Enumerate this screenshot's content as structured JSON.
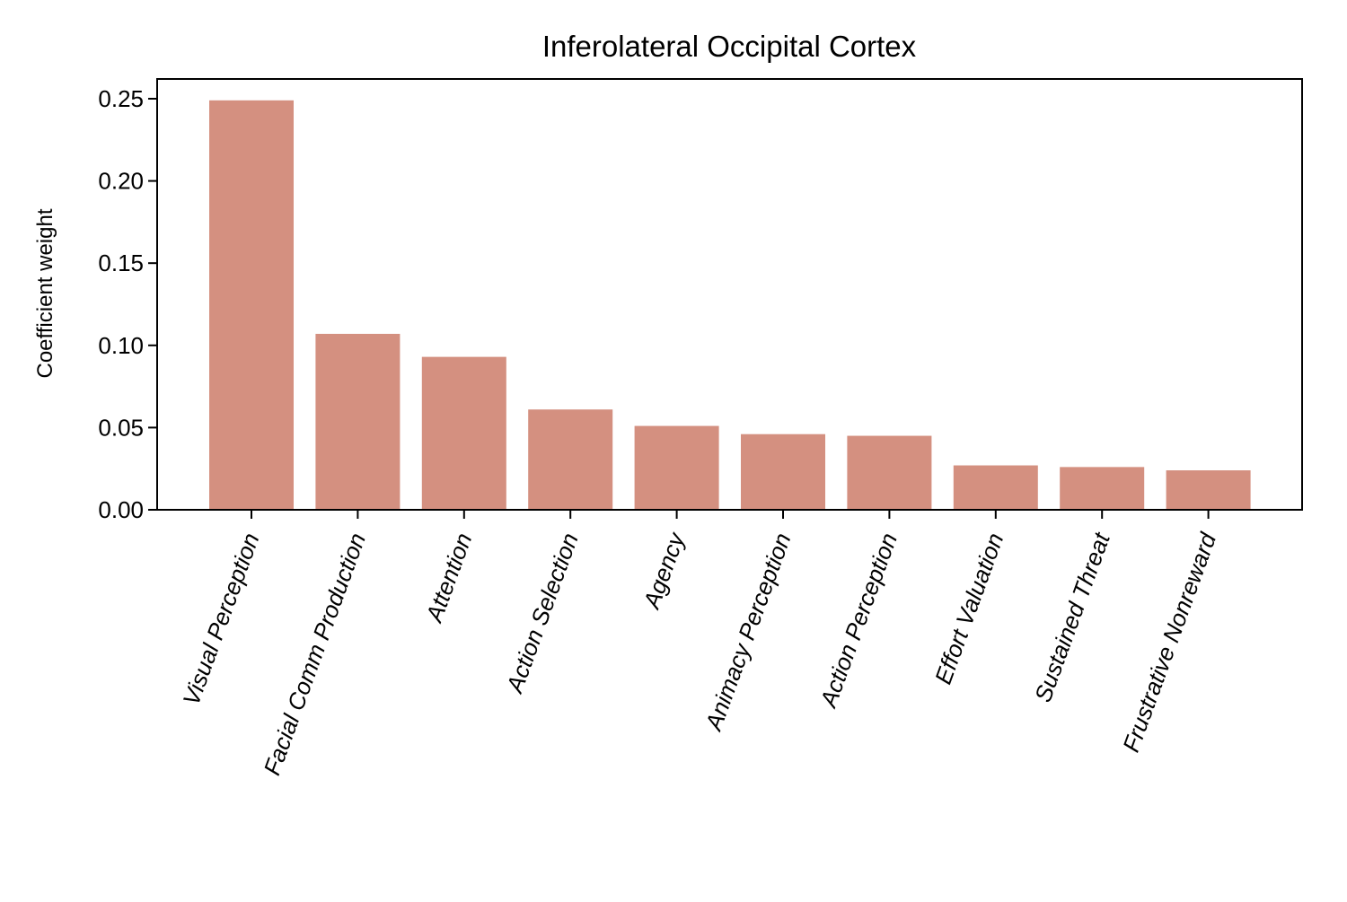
{
  "chart_data": {
    "type": "bar",
    "title": "Inferolateral Occipital Cortex",
    "xlabel": "",
    "ylabel": "Coefficient weight",
    "categories": [
      "Visual Perception",
      "Facial Comm Production",
      "Attention",
      "Action Selection",
      "Agency",
      "Animacy Perception",
      "Action Perception",
      "Effort Valuation",
      "Sustained Threat",
      "Frustrative Nonreward"
    ],
    "values": [
      0.249,
      0.107,
      0.093,
      0.061,
      0.051,
      0.046,
      0.045,
      0.027,
      0.026,
      0.024
    ],
    "ylim": [
      0,
      0.262
    ],
    "yticks": [
      0.0,
      0.05,
      0.1,
      0.15,
      0.2,
      0.25
    ],
    "ytick_labels": [
      "0.00",
      "0.05",
      "0.10",
      "0.15",
      "0.20",
      "0.25"
    ],
    "bar_color": "#d49080",
    "grid": false,
    "legend": "none"
  }
}
